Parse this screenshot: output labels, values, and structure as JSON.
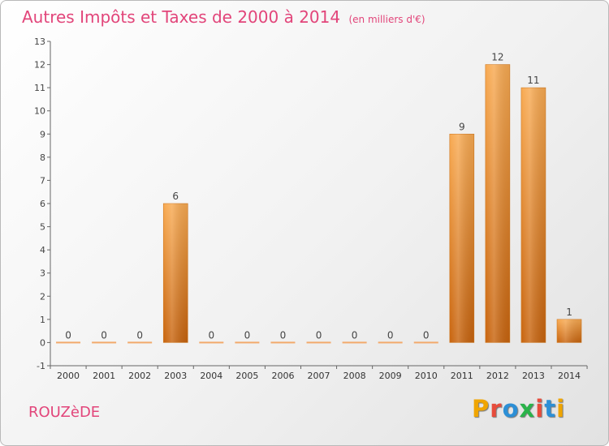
{
  "header": {
    "title": "Autres Impôts et Taxes de 2000 à 2014",
    "unit": "(en milliers d'€)"
  },
  "footer": {
    "place": "ROUZèDE",
    "logo_text": "Proxiti",
    "logo_colors": [
      "#f0a500",
      "#e74c3c",
      "#2c8fd6",
      "#2ab34a",
      "#e74c3c",
      "#2c8fd6",
      "#f0a500"
    ]
  },
  "colors": {
    "title": "#e2457a",
    "bar_light": "#f7a64e",
    "bar_dark": "#c8640e",
    "axis": "#555555"
  },
  "chart_data": {
    "type": "bar",
    "title": "Autres Impôts et Taxes de 2000 à 2014",
    "subtitle": "(en milliers d'€)",
    "categories": [
      "2000",
      "2001",
      "2002",
      "2003",
      "2004",
      "2005",
      "2006",
      "2007",
      "2008",
      "2009",
      "2010",
      "2011",
      "2012",
      "2013",
      "2014"
    ],
    "values": [
      0,
      0,
      0,
      6,
      0,
      0,
      0,
      0,
      0,
      0,
      0,
      9,
      12,
      11,
      1
    ],
    "data_labels": [
      "0",
      "0",
      "0",
      "6",
      "0",
      "0",
      "0",
      "0",
      "0",
      "0",
      "0",
      "9",
      "12",
      "11",
      "1"
    ],
    "y_ticks": [
      -1,
      0,
      1,
      2,
      3,
      4,
      5,
      6,
      7,
      8,
      9,
      10,
      11,
      12,
      13
    ],
    "ylim": [
      -1,
      13
    ],
    "xlabel": "",
    "ylabel": "",
    "grid": false,
    "legend": "none"
  }
}
